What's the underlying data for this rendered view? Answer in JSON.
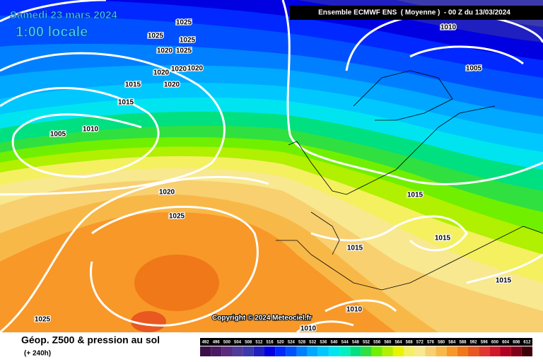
{
  "header": {
    "date": "Samedi 23 mars 2024",
    "time": "1:00 locale",
    "model": "Ensemble ECMWF ENS  ( Moyenne )  - 00 Z du 13/03/2024"
  },
  "map": {
    "isobar_labels": [
      "1025",
      "1025",
      "1025",
      "1020",
      "1025",
      "1020",
      "1020",
      "1020",
      "1015",
      "1020",
      "1015",
      "1005",
      "1010",
      "1020",
      "1025",
      "1025",
      "1010",
      "1005",
      "1015",
      "1015",
      "1015",
      "1015",
      "1010",
      "1010"
    ],
    "copyright": "Copyright © 2024 Meteociel.fr"
  },
  "footer": {
    "title": "Géop. Z500 & pression au sol",
    "subtitle": "(+ 240h)"
  },
  "scale": {
    "values": [
      492,
      496,
      500,
      504,
      508,
      512,
      516,
      520,
      524,
      528,
      532,
      536,
      540,
      544,
      548,
      552,
      556,
      560,
      564,
      568,
      572,
      576,
      580,
      584,
      588,
      592,
      596,
      600,
      604,
      608,
      612
    ],
    "colors": [
      "#3c0f4b",
      "#4b1a64",
      "#5a2a80",
      "#503a9a",
      "#3a3aaa",
      "#2020c0",
      "#0000e0",
      "#0028ff",
      "#0050ff",
      "#0080ff",
      "#00a8ff",
      "#00c8ff",
      "#00e4f0",
      "#00f0c0",
      "#00e080",
      "#30e040",
      "#70f000",
      "#b0f000",
      "#e8f400",
      "#f4f060",
      "#f8e890",
      "#f8d070",
      "#f8b848",
      "#f89828",
      "#f07818",
      "#e85820",
      "#e03830",
      "#d01828",
      "#b00020",
      "#800018",
      "#400008"
    ]
  }
}
